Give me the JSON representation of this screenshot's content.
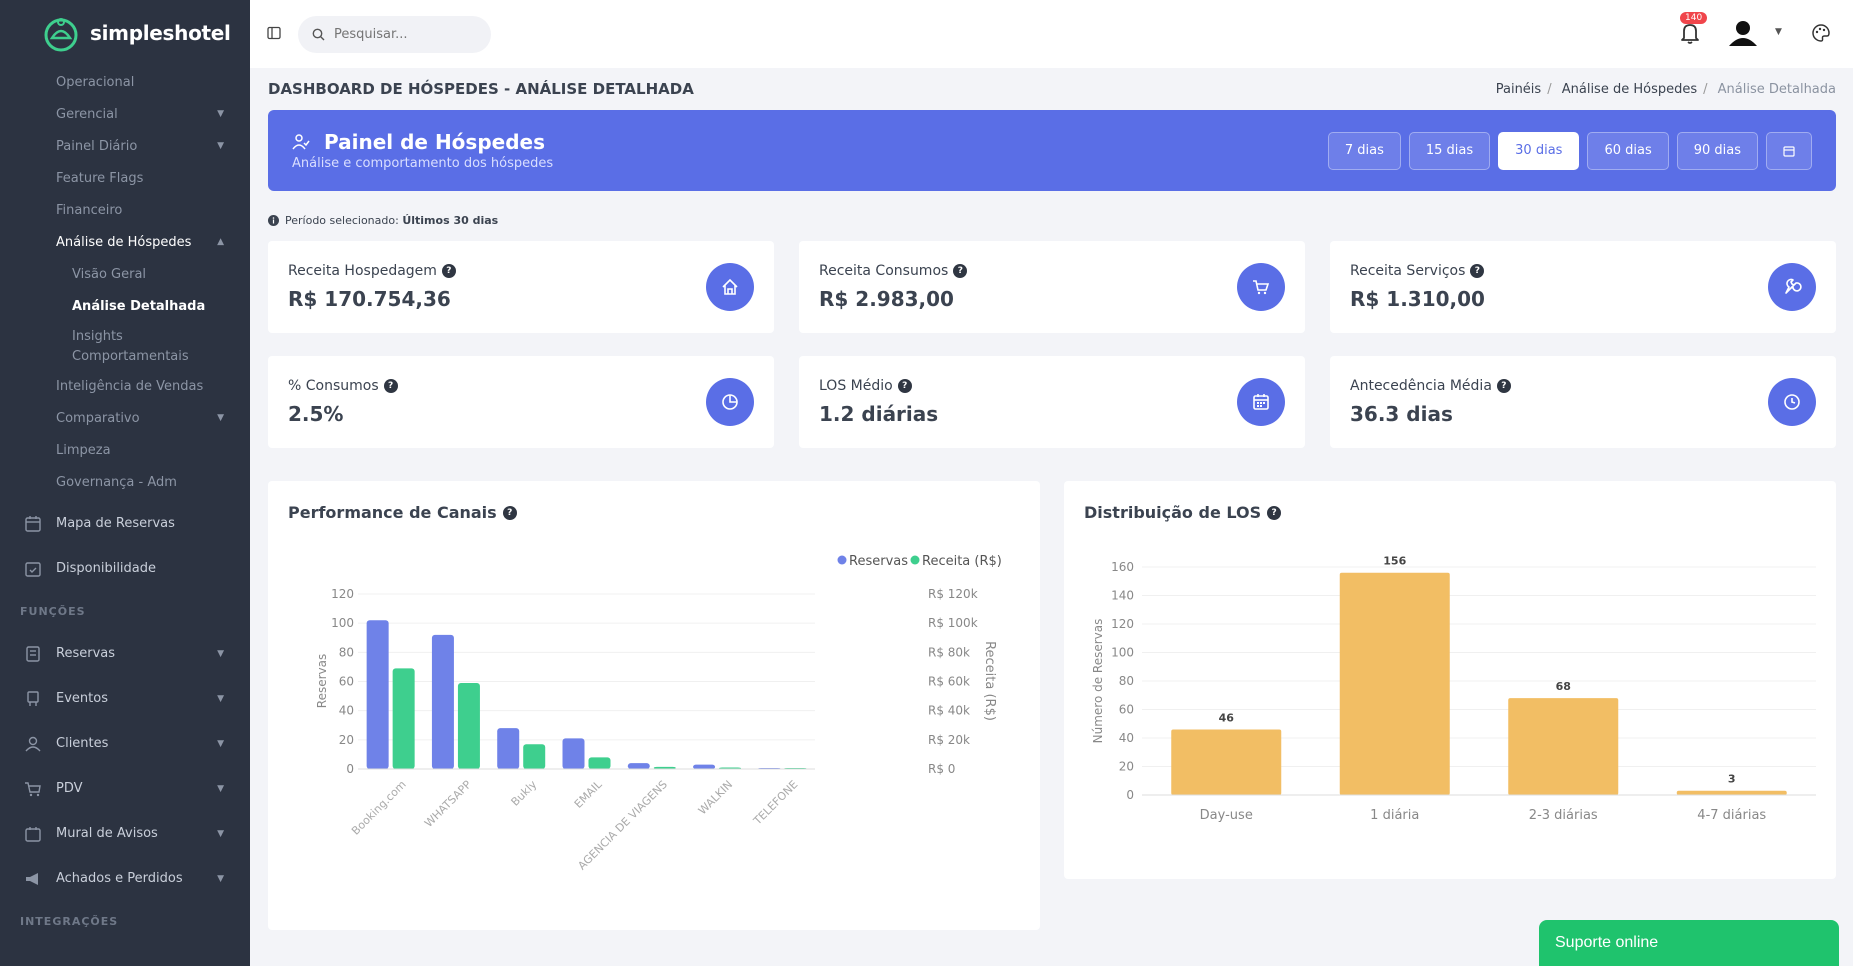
{
  "brand": {
    "name": "simpleshotel"
  },
  "sidebar": {
    "sub_items": [
      {
        "label": "Operacional",
        "chevron": false
      },
      {
        "label": "Gerencial",
        "chevron": true
      },
      {
        "label": "Painel Diário",
        "chevron": true
      },
      {
        "label": "Feature Flags",
        "chevron": false
      },
      {
        "label": "Financeiro",
        "chevron": false
      },
      {
        "label": "Análise de Hóspedes",
        "chevron": true,
        "active": true
      }
    ],
    "nested": [
      {
        "label": "Visão Geral"
      },
      {
        "label": "Análise Detalhada",
        "active": true
      },
      {
        "label": "Insights Comportamentais"
      }
    ],
    "sub_items2": [
      {
        "label": "Inteligência de Vendas",
        "chevron": false
      },
      {
        "label": "Comparativo",
        "chevron": true
      },
      {
        "label": "Limpeza",
        "chevron": false
      },
      {
        "label": "Governança - Adm",
        "chevron": false
      }
    ],
    "main_items": [
      {
        "label": "Mapa de Reservas",
        "icon": "calendar-icon"
      },
      {
        "label": "Disponibilidade",
        "icon": "calendar-check-icon"
      }
    ],
    "section_funcoes": "FUNÇÕES",
    "funcoes_items": [
      {
        "label": "Reservas",
        "icon": "reservations-icon"
      },
      {
        "label": "Eventos",
        "icon": "events-icon"
      },
      {
        "label": "Clientes",
        "icon": "user-icon"
      },
      {
        "label": "PDV",
        "icon": "cart-icon"
      },
      {
        "label": "Mural de Avisos",
        "icon": "board-icon"
      },
      {
        "label": "Achados e Perdidos",
        "icon": "megaphone-icon"
      }
    ],
    "section_integracoes": "INTEGRAÇÕES"
  },
  "topbar": {
    "search_placeholder": "Pesquisar...",
    "notification_count": "140"
  },
  "page": {
    "title": "DASHBOARD DE HÓSPEDES - ANÁLISE DETALHADA",
    "breadcrumb": [
      "Painéis",
      "Análise de Hóspedes",
      "Análise Detalhada"
    ]
  },
  "banner": {
    "title": "Painel de Hóspedes",
    "subtitle": "Análise e comportamento dos hóspedes",
    "periods": [
      "7 dias",
      "15 dias",
      "30 dias",
      "60 dias",
      "90 dias"
    ],
    "active_period": "30 dias"
  },
  "period_info": {
    "prefix": "Período selecionado: ",
    "value": "Últimos 30 dias"
  },
  "kpis": [
    {
      "label": "Receita Hospedagem",
      "value": "R$ 170.754,36",
      "icon": "home-icon"
    },
    {
      "label": "Receita Consumos",
      "value": "R$ 2.983,00",
      "icon": "cart-icon"
    },
    {
      "label": "Receita Serviços",
      "value": "R$ 1.310,00",
      "icon": "wrench-icon"
    },
    {
      "label": "% Consumos",
      "value": "2.5%",
      "icon": "pie-chart-icon"
    },
    {
      "label": "LOS Médio",
      "value": "1.2 diárias",
      "icon": "calendar-icon"
    },
    {
      "label": "Antecedência Média",
      "value": "36.3 dias",
      "icon": "clock-icon"
    }
  ],
  "colors": {
    "primary": "#5a6ee6",
    "bar_blue": "#6f82e8",
    "bar_green": "#3ecf8e",
    "bar_orange": "#f2be64",
    "sidebar_bg": "#2c3341",
    "support_green": "#1fc36d"
  },
  "chart_data": [
    {
      "type": "bar",
      "title": "Performance de Canais",
      "categories": [
        "Booking.com",
        "WHATSAPP",
        "Bukly",
        "EMAIL",
        "AGENCIA DE VIAGENS",
        "WALKIN",
        "TELEFONE"
      ],
      "series": [
        {
          "name": "Reservas",
          "values": [
            102,
            92,
            28,
            21,
            4,
            3,
            0
          ],
          "axis": "left"
        },
        {
          "name": "Receita (R$)",
          "values": [
            69000,
            59000,
            17000,
            8000,
            1500,
            1000,
            500
          ],
          "axis": "right"
        }
      ],
      "ylabel": "Reservas",
      "ylabel_right": "Receita (R$)",
      "ylim": [
        0,
        120
      ],
      "ylim_right": [
        0,
        120000
      ],
      "yticks": [
        "0",
        "20",
        "40",
        "60",
        "80",
        "100",
        "120"
      ],
      "yticks_right": [
        "R$ 0",
        "R$ 20k",
        "R$ 40k",
        "R$ 60k",
        "R$ 80k",
        "R$ 100k",
        "R$ 120k"
      ],
      "legend": "top-right"
    },
    {
      "type": "bar",
      "title": "Distribuição de LOS",
      "categories": [
        "Day-use",
        "1 diária",
        "2-3 diárias",
        "4-7 diárias"
      ],
      "values": [
        46,
        156,
        68,
        3
      ],
      "ylabel": "Número de Reservas",
      "ylim": [
        0,
        160
      ],
      "yticks": [
        "0",
        "20",
        "40",
        "60",
        "80",
        "100",
        "120",
        "140",
        "160"
      ],
      "data_labels": true
    }
  ],
  "support": {
    "label": "Suporte online"
  }
}
